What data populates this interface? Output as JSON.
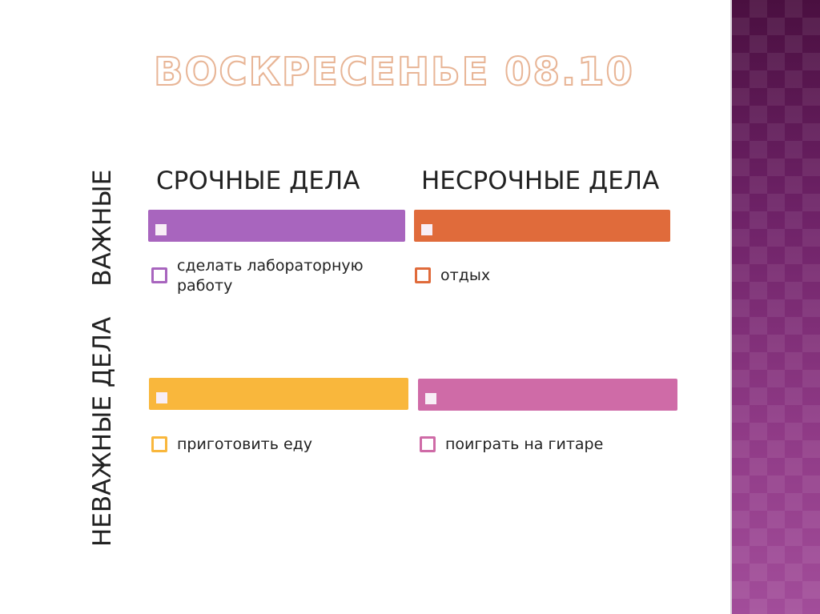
{
  "slide": {
    "title": "ВОСКРЕСЕНЬЕ 08.10",
    "row_labels": {
      "unimportant": "НЕВАЖНЫЕ  ДЕЛА",
      "important": "ВАЖНЫЕ"
    },
    "column_headers": {
      "urgent": "СРОЧНЫЕ ДЕЛА",
      "not_urgent": "НЕСРОЧНЫЕ ДЕЛА"
    },
    "quadrants": [
      {
        "id": "important-urgent",
        "color": "#a865be",
        "item": "сделать лабораторную работу"
      },
      {
        "id": "important-not-urgent",
        "color": "#e06b3b",
        "item": "отдых"
      },
      {
        "id": "unimportant-urgent",
        "color": "#f9b73c",
        "item": "приготовить еду"
      },
      {
        "id": "unimportant-not-urgent",
        "color": "#cf6ba7",
        "item": "поиграть на гитаре"
      }
    ],
    "accent_strip_color": "#8f3a86"
  }
}
